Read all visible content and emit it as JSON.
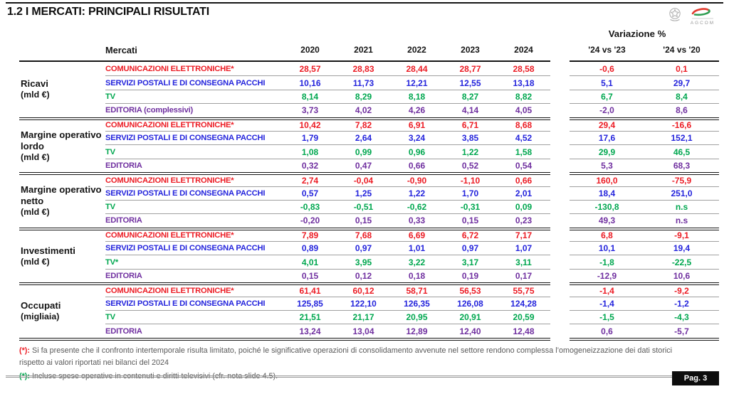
{
  "page": {
    "title": "1.2 I MERCATI: PRINCIPALI RISULTATI",
    "page_label": "Pag. 3"
  },
  "logo": {
    "wordmark": "AGCOM"
  },
  "colors": {
    "red": "#EC1C24",
    "blue": "#2424DC",
    "green": "#00A74F",
    "purple": "#7030A0",
    "black": "#141414"
  },
  "table": {
    "variation_header": "Variazione %",
    "columns": [
      "Mercati",
      "2020",
      "2021",
      "2022",
      "2023",
      "2024",
      "'24 vs '23",
      "'24 vs '20"
    ],
    "groups": [
      {
        "label": "Ricavi",
        "unit": "(mld €)",
        "rows": [
          {
            "market": "COMUNICAZIONI ELETTRONICHE*",
            "color": "red",
            "values": [
              "28,57",
              "28,83",
              "28,44",
              "28,77",
              "28,58",
              "-0,6",
              "0,1"
            ]
          },
          {
            "market": "SERVIZI POSTALI E DI CONSEGNA PACCHI",
            "color": "blue",
            "values": [
              "10,16",
              "11,73",
              "12,21",
              "12,55",
              "13,18",
              "5,1",
              "29,7"
            ]
          },
          {
            "market": "TV",
            "color": "green",
            "values": [
              "8,14",
              "8,29",
              "8,18",
              "8,27",
              "8,82",
              "6,7",
              "8,4"
            ]
          },
          {
            "market": "EDITORIA (complessivi)",
            "color": "purple",
            "values": [
              "3,73",
              "4,02",
              "4,26",
              "4,14",
              "4,05",
              "-2,0",
              "8,6"
            ]
          }
        ]
      },
      {
        "label": "Margine operativo lordo",
        "unit": "(mld €)",
        "rows": [
          {
            "market": "COMUNICAZIONI ELETTRONICHE*",
            "color": "red",
            "values": [
              "10,42",
              "7,82",
              "6,91",
              "6,71",
              "8,68",
              "29,4",
              "-16,6"
            ]
          },
          {
            "market": "SERVIZI POSTALI E DI CONSEGNA PACCHI",
            "color": "blue",
            "values": [
              "1,79",
              "2,64",
              "3,24",
              "3,85",
              "4,52",
              "17,6",
              "152,1"
            ]
          },
          {
            "market": "TV",
            "color": "green",
            "values": [
              "1,08",
              "0,99",
              "0,96",
              "1,22",
              "1,58",
              "29,9",
              "46,5"
            ]
          },
          {
            "market": "EDITORIA",
            "color": "purple",
            "values": [
              "0,32",
              "0,47",
              "0,66",
              "0,52",
              "0,54",
              "5,3",
              "68,3"
            ]
          }
        ]
      },
      {
        "label": "Margine operativo netto",
        "unit": "(mld €)",
        "rows": [
          {
            "market": "COMUNICAZIONI ELETTRONICHE*",
            "color": "red",
            "values": [
              "2,74",
              "-0,04",
              "-0,90",
              "-1,10",
              "0,66",
              "160,0",
              "-75,9"
            ]
          },
          {
            "market": "SERVIZI POSTALI E DI CONSEGNA PACCHI",
            "color": "blue",
            "values": [
              "0,57",
              "1,25",
              "1,22",
              "1,70",
              "2,01",
              "18,4",
              "251,0"
            ]
          },
          {
            "market": "TV",
            "color": "green",
            "values": [
              "-0,83",
              "-0,51",
              "-0,62",
              "-0,31",
              "0,09",
              "-130,8",
              "n.s"
            ]
          },
          {
            "market": "EDITORIA",
            "color": "purple",
            "values": [
              "-0,20",
              "0,15",
              "0,33",
              "0,15",
              "0,23",
              "49,3",
              "n.s"
            ]
          }
        ]
      },
      {
        "label": "Investimenti",
        "unit": "(mld €)",
        "rows": [
          {
            "market": "COMUNICAZIONI ELETTRONICHE*",
            "color": "red",
            "values": [
              "7,89",
              "7,68",
              "6,69",
              "6,72",
              "7,17",
              "6,8",
              "-9,1"
            ]
          },
          {
            "market": "SERVIZI POSTALI E DI CONSEGNA PACCHI",
            "color": "blue",
            "values": [
              "0,89",
              "0,97",
              "1,01",
              "0,97",
              "1,07",
              "10,1",
              "19,4"
            ]
          },
          {
            "market": "TV*",
            "color": "green",
            "values": [
              "4,01",
              "3,95",
              "3,22",
              "3,17",
              "3,11",
              "-1,8",
              "-22,5"
            ]
          },
          {
            "market": "EDITORIA",
            "color": "purple",
            "values": [
              "0,15",
              "0,12",
              "0,18",
              "0,19",
              "0,17",
              "-12,9",
              "10,6"
            ]
          }
        ]
      },
      {
        "label": "Occupati",
        "unit": "(migliaia)",
        "rows": [
          {
            "market": "COMUNICAZIONI ELETTRONICHE*",
            "color": "red",
            "values": [
              "61,41",
              "60,12",
              "58,71",
              "56,53",
              "55,75",
              "-1,4",
              "-9,2"
            ]
          },
          {
            "market": "SERVIZI POSTALI E DI CONSEGNA PACCHI",
            "color": "blue",
            "values": [
              "125,85",
              "122,10",
              "126,35",
              "126,08",
              "124,28",
              "-1,4",
              "-1,2"
            ]
          },
          {
            "market": "TV",
            "color": "green",
            "values": [
              "21,51",
              "21,17",
              "20,95",
              "20,91",
              "20,59",
              "-1,5",
              "-4,3"
            ]
          },
          {
            "market": "EDITORIA",
            "color": "purple",
            "values": [
              "13,24",
              "13,04",
              "12,89",
              "12,40",
              "12,48",
              "0,6",
              "-5,7"
            ]
          }
        ]
      }
    ]
  },
  "footnotes": [
    {
      "marker": "(*):",
      "marker_color": "red",
      "text": " Si fa presente che il confronto intertemporale risulta limitato, poiché le significative operazioni di consolidamento avvenute nel settore rendono complessa l’omogeneizzazione dei dati storici rispetto ai valori riportati nei bilanci del 2024"
    },
    {
      "marker": "(*):",
      "marker_color": "green",
      "text": " Incluse spese operative in contenuti e diritti televisivi (cfr. nota slide 4.5)."
    }
  ]
}
